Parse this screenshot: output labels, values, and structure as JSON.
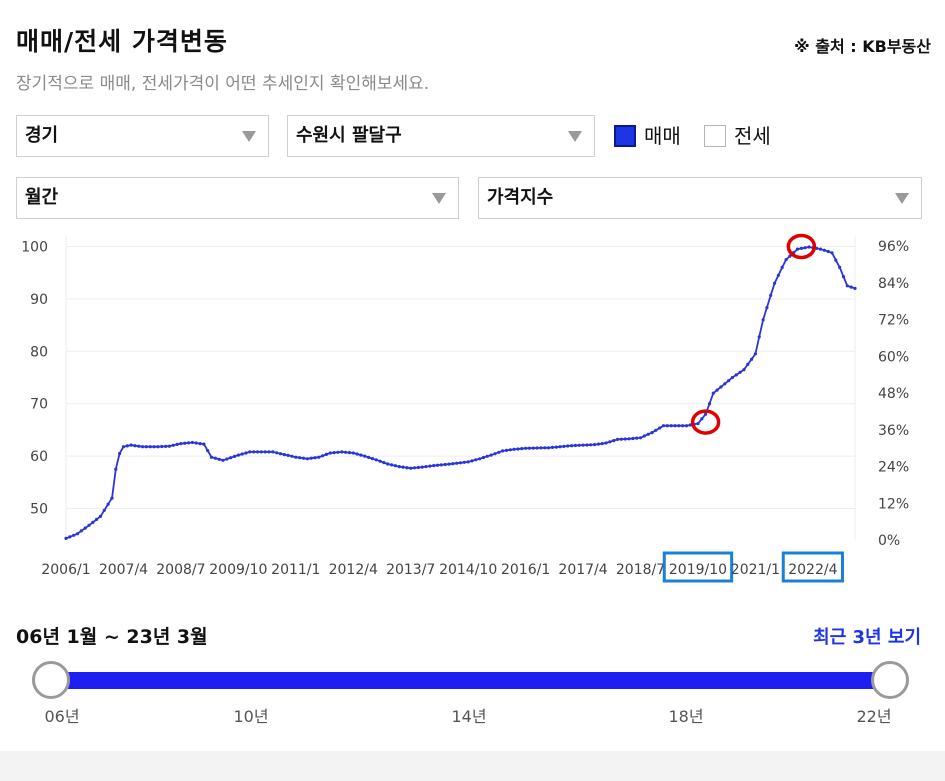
{
  "header": {
    "title": "매매/전세 가격변동",
    "source": "※ 출처 : KB부동산",
    "subtitle": "장기적으로 매매, 전세가격이 어떤 추세인지 확인해보세요."
  },
  "filters": {
    "region": "경기",
    "district": "수원시 팔달구",
    "period": "월간",
    "metric": "가격지수",
    "sale_label": "매매",
    "jeonse_label": "전세",
    "sale_checked": true,
    "jeonse_checked": false
  },
  "chart_data": {
    "type": "line",
    "title": "",
    "xlabel": "",
    "ylabel": "",
    "ylim": [
      44,
      102
    ],
    "y2lim": [
      0,
      96
    ],
    "y_ticks": [
      "100",
      "90",
      "80",
      "70",
      "60",
      "50"
    ],
    "y2_ticks": [
      "96%",
      "84%",
      "72%",
      "60%",
      "48%",
      "36%",
      "24%",
      "12%",
      "0%"
    ],
    "x_ticks": [
      "2006/1",
      "2007/4",
      "2008/7",
      "2009/10",
      "2011/1",
      "2012/4",
      "2013/7",
      "2014/10",
      "2016/1",
      "2017/4",
      "2018/7",
      "2019/10",
      "2021/1",
      "2022/4"
    ],
    "highlighted_ticks": [
      "2019/10",
      "2022/4"
    ],
    "colors": {
      "series": "#2b35d6",
      "highlight_box": "#1a7fd8",
      "marker_circle": "#e00000"
    },
    "series": [
      {
        "name": "매매",
        "start": "2006/1",
        "keypoints": [
          [
            "2006/1",
            44.3
          ],
          [
            "2006/4",
            45.2
          ],
          [
            "2006/7",
            46.8
          ],
          [
            "2006/10",
            48.5
          ],
          [
            "2007/1",
            52.0
          ],
          [
            "2007/2",
            57.5
          ],
          [
            "2007/3",
            60.5
          ],
          [
            "2007/4",
            61.8
          ],
          [
            "2007/6",
            62.1
          ],
          [
            "2007/9",
            61.8
          ],
          [
            "2008/1",
            61.8
          ],
          [
            "2008/4",
            61.9
          ],
          [
            "2008/7",
            62.4
          ],
          [
            "2008/10",
            62.6
          ],
          [
            "2009/1",
            62.3
          ],
          [
            "2009/3",
            59.8
          ],
          [
            "2009/6",
            59.2
          ],
          [
            "2009/10",
            60.2
          ],
          [
            "2010/1",
            60.8
          ],
          [
            "2010/7",
            60.8
          ],
          [
            "2011/1",
            59.8
          ],
          [
            "2011/4",
            59.5
          ],
          [
            "2011/7",
            59.8
          ],
          [
            "2011/10",
            60.6
          ],
          [
            "2012/1",
            60.8
          ],
          [
            "2012/4",
            60.6
          ],
          [
            "2012/7",
            60.0
          ],
          [
            "2012/10",
            59.3
          ],
          [
            "2013/1",
            58.5
          ],
          [
            "2013/4",
            58.0
          ],
          [
            "2013/7",
            57.7
          ],
          [
            "2013/10",
            57.9
          ],
          [
            "2014/1",
            58.2
          ],
          [
            "2014/4",
            58.4
          ],
          [
            "2014/10",
            58.9
          ],
          [
            "2015/1",
            59.5
          ],
          [
            "2015/4",
            60.2
          ],
          [
            "2015/7",
            61.0
          ],
          [
            "2015/10",
            61.3
          ],
          [
            "2016/1",
            61.5
          ],
          [
            "2016/7",
            61.6
          ],
          [
            "2017/1",
            62.0
          ],
          [
            "2017/7",
            62.2
          ],
          [
            "2017/10",
            62.5
          ],
          [
            "2018/1",
            63.2
          ],
          [
            "2018/4",
            63.3
          ],
          [
            "2018/7",
            63.5
          ],
          [
            "2018/10",
            64.5
          ],
          [
            "2019/1",
            65.8
          ],
          [
            "2019/7",
            65.8
          ],
          [
            "2019/10",
            66.2
          ],
          [
            "2019/12",
            68.0
          ],
          [
            "2020/2",
            72.0
          ],
          [
            "2020/4",
            73.2
          ],
          [
            "2020/7",
            75.0
          ],
          [
            "2020/10",
            76.5
          ],
          [
            "2021/1",
            79.5
          ],
          [
            "2021/3",
            86.0
          ],
          [
            "2021/6",
            93.0
          ],
          [
            "2021/9",
            97.5
          ],
          [
            "2021/12",
            99.5
          ],
          [
            "2022/3",
            99.9
          ],
          [
            "2022/6",
            99.5
          ],
          [
            "2022/9",
            98.8
          ],
          [
            "2022/11",
            96.0
          ],
          [
            "2023/1",
            92.5
          ],
          [
            "2023/3",
            92.0
          ]
        ]
      }
    ],
    "markers": [
      {
        "date": "2019/12",
        "value": 66.5,
        "label": "marker-2019"
      },
      {
        "date": "2022/1",
        "value": 100.0,
        "label": "marker-2022"
      }
    ]
  },
  "range": {
    "label": "06년 1월 ~ 23년 3월",
    "recent_button": "최근 3년 보기",
    "ticks": [
      "06년",
      "10년",
      "14년",
      "18년",
      "22년"
    ]
  }
}
